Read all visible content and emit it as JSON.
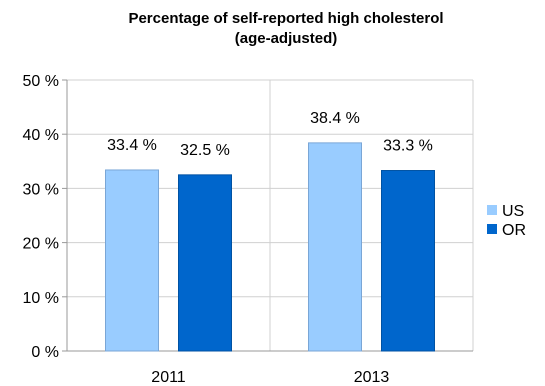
{
  "chart_data": {
    "type": "bar",
    "title": "Percentage of self-reported high cholesterol",
    "subtitle": "(age-adjusted)",
    "categories": [
      "2011",
      "2013"
    ],
    "series": [
      {
        "name": "US",
        "values": [
          33.4,
          38.4
        ],
        "labels": [
          "33.4 %",
          "38.4 %"
        ],
        "color": "#99ccff"
      },
      {
        "name": "OR",
        "values": [
          32.5,
          33.3
        ],
        "labels": [
          "32.5 %",
          "33.3 %"
        ],
        "color": "#0066cc"
      }
    ],
    "ylim": [
      0,
      50
    ],
    "yticks": [
      0,
      10,
      20,
      30,
      40,
      50
    ],
    "ytick_labels": [
      "0 %",
      "10 %",
      "20 %",
      "30 %",
      "40 %",
      "50 %"
    ],
    "grid": true,
    "legend_position": "right",
    "xlabel": "",
    "ylabel": ""
  }
}
